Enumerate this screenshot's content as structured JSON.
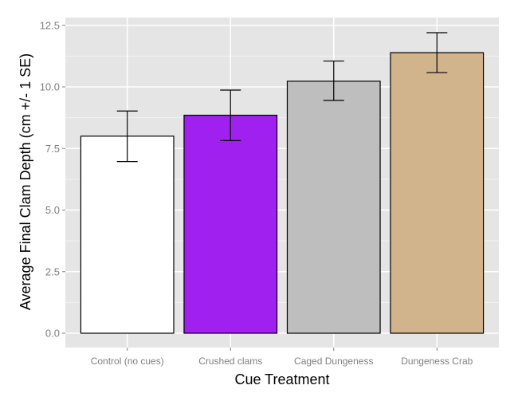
{
  "chart_data": {
    "type": "bar",
    "title": "",
    "xlabel": "Cue Treatment",
    "ylabel": "Average Final Clam Depth (cm +/- 1 SE)",
    "categories": [
      "Control (no cues)",
      "Crushed clams",
      "Caged Dungeness",
      "Dungeness Crab"
    ],
    "values": [
      8.0,
      8.85,
      10.23,
      11.39
    ],
    "error_lower": [
      6.97,
      7.82,
      9.45,
      10.58
    ],
    "error_upper": [
      9.02,
      9.87,
      11.05,
      12.2
    ],
    "colors": [
      "#ffffff",
      "#a020f0",
      "#bebebe",
      "#d2b48c"
    ],
    "ylim": [
      0,
      12.5
    ],
    "yticks": [
      0.0,
      2.5,
      5.0,
      7.5,
      10.0,
      12.5
    ],
    "ytick_labels": [
      "0.0",
      "2.5",
      "5.0",
      "7.5",
      "10.0",
      "12.5"
    ],
    "grid": true,
    "legend": "none",
    "panel_background": "#e5e5e5",
    "grid_color": "#ffffff",
    "bar_outline": "#000000"
  }
}
